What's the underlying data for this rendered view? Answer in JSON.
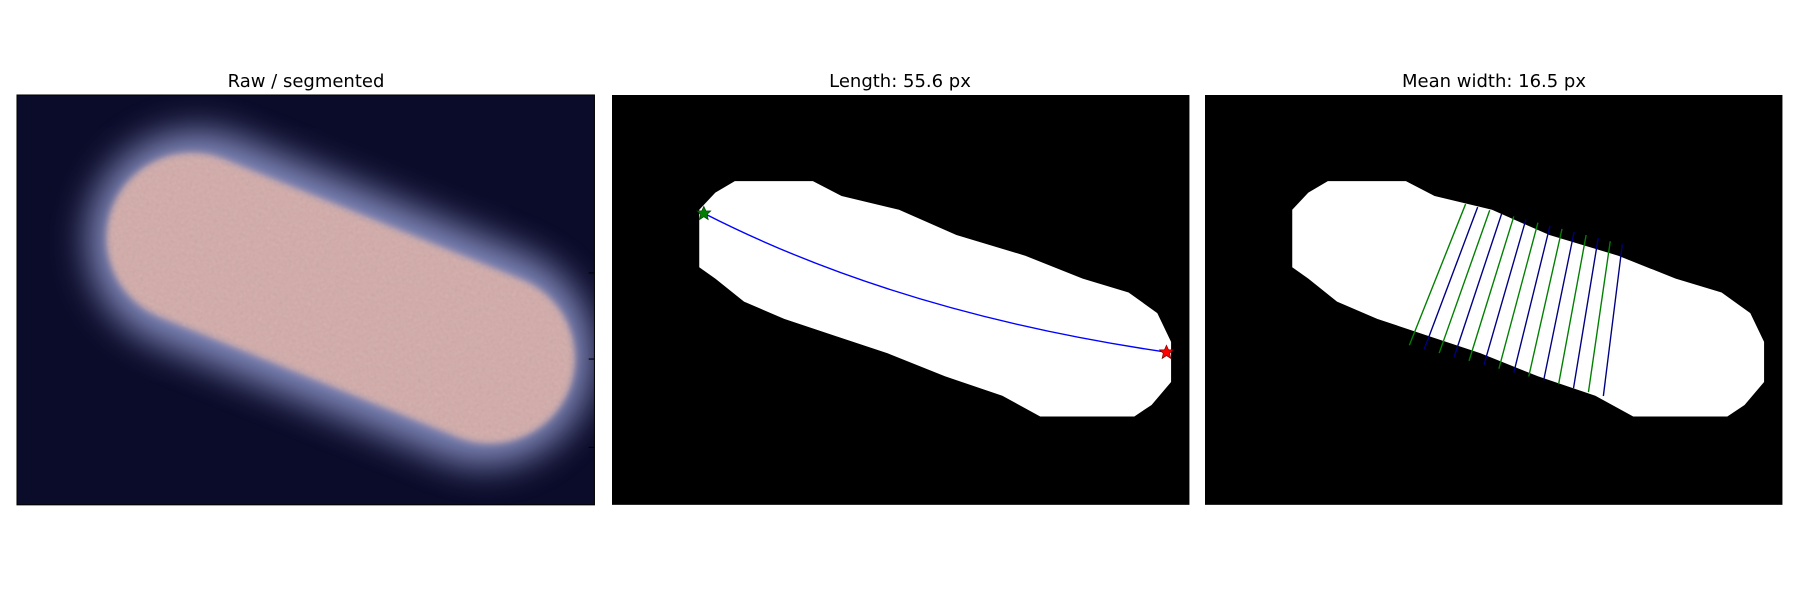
{
  "panels": [
    {
      "title": "Raw / segmented"
    },
    {
      "title": "Length: 55.6 px"
    },
    {
      "title": "Mean width: 16.5 px"
    }
  ]
}
